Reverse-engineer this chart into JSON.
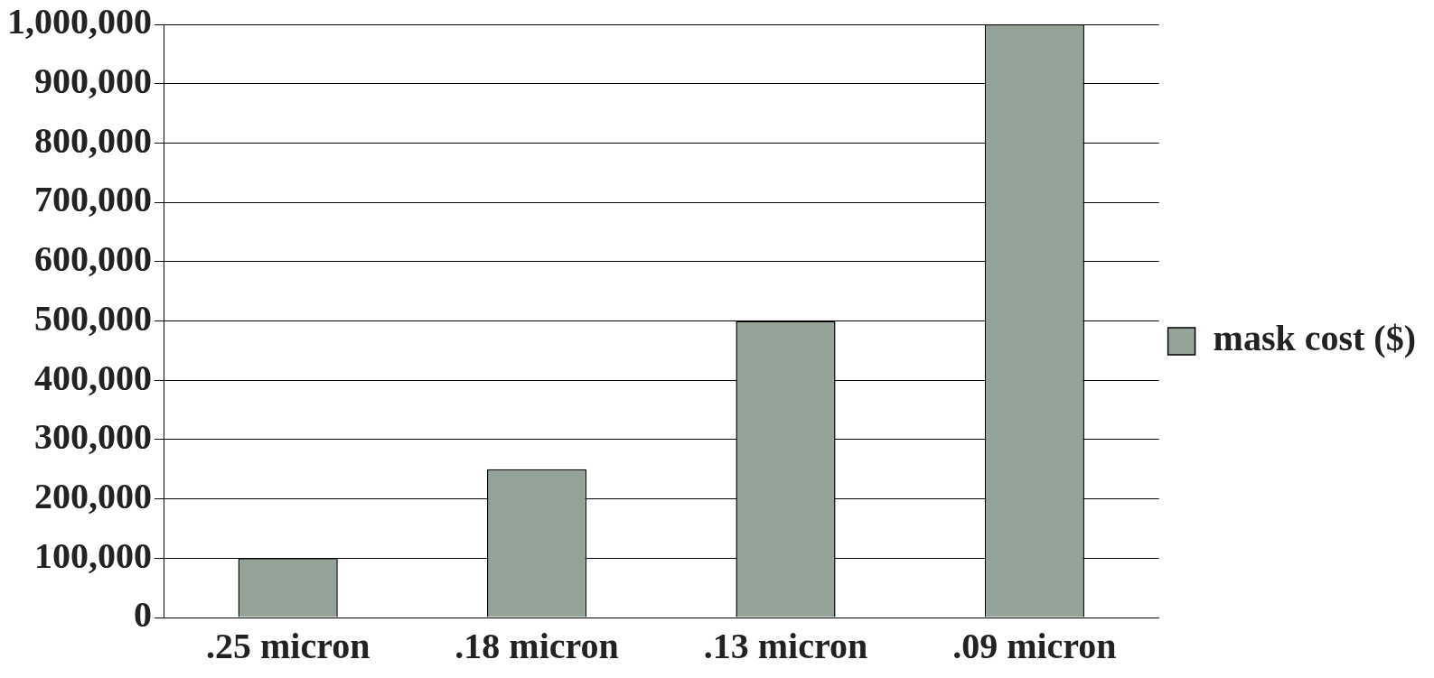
{
  "chart_data": {
    "type": "bar",
    "categories": [
      ".25 micron",
      ".18 micron",
      ".13 micron",
      ".09 micron"
    ],
    "series": [
      {
        "name": "mask cost ($)",
        "color": "#94a398",
        "values": [
          100000,
          250000,
          500000,
          1000000
        ]
      }
    ],
    "ylim": [
      0,
      1000000
    ],
    "yticks": [
      {
        "value": 0,
        "label": "0"
      },
      {
        "value": 100000,
        "label": "100,000"
      },
      {
        "value": 200000,
        "label": "200,000"
      },
      {
        "value": 300000,
        "label": "300,000"
      },
      {
        "value": 400000,
        "label": "400,000"
      },
      {
        "value": 500000,
        "label": "500,000"
      },
      {
        "value": 600000,
        "label": "600,000"
      },
      {
        "value": 700000,
        "label": "700,000"
      },
      {
        "value": 800000,
        "label": "800,000"
      },
      {
        "value": 900000,
        "label": "900,000"
      },
      {
        "value": 1000000,
        "label": "1,000,000"
      }
    ],
    "grid": "y",
    "legend": "right"
  }
}
